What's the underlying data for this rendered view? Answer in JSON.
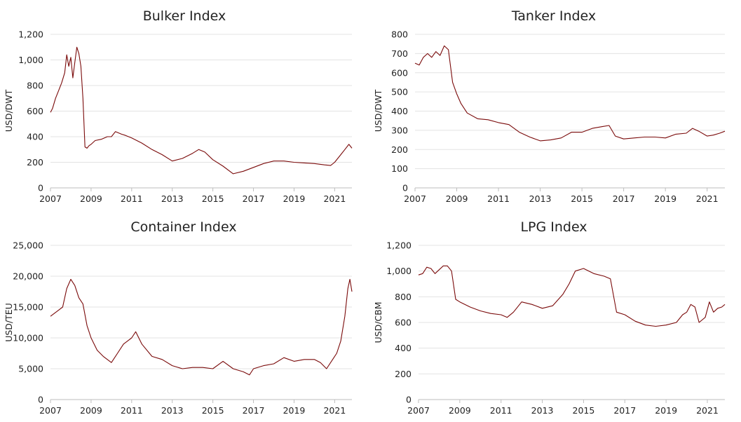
{
  "colors": {
    "series": "#7a0a0a",
    "grid": "#e3e3e3",
    "text": "#222222"
  },
  "chart_data": [
    {
      "type": "line",
      "title": "Bulker Index",
      "ylabel": "USD/DWT",
      "ylim": [
        0,
        1200
      ],
      "yticks": [
        0,
        200,
        400,
        600,
        800,
        1000,
        1200
      ],
      "ytick_labels": [
        "0",
        "200",
        "400",
        "600",
        "800",
        "1,000",
        "1,200"
      ],
      "xlim": [
        2007,
        2021.85
      ],
      "xticks": [
        2007,
        2009,
        2011,
        2013,
        2015,
        2017,
        2019,
        2021
      ],
      "xtick_labels": [
        "2007",
        "2009",
        "2011",
        "2013",
        "2015",
        "2017",
        "2019",
        "2021"
      ],
      "grid": true,
      "series": [
        {
          "x": [
            2007.0,
            2007.1,
            2007.25,
            2007.4,
            2007.55,
            2007.7,
            2007.8,
            2007.9,
            2008.0,
            2008.1,
            2008.2,
            2008.3,
            2008.4,
            2008.5,
            2008.6,
            2008.7,
            2008.8,
            2008.9,
            2009.0,
            2009.2,
            2009.5,
            2009.8,
            2010.0,
            2010.2,
            2010.5,
            2010.7,
            2011.0,
            2011.5,
            2012.0,
            2012.5,
            2013.0,
            2013.5,
            2014.0,
            2014.3,
            2014.6,
            2015.0,
            2015.5,
            2016.0,
            2016.5,
            2017.0,
            2017.5,
            2018.0,
            2018.5,
            2019.0,
            2019.5,
            2020.0,
            2020.5,
            2020.8,
            2021.0,
            2021.3,
            2021.5,
            2021.7,
            2021.85
          ],
          "y": [
            590,
            620,
            700,
            760,
            820,
            900,
            1040,
            950,
            1020,
            860,
            980,
            1100,
            1050,
            950,
            700,
            320,
            310,
            330,
            340,
            370,
            380,
            400,
            400,
            440,
            420,
            410,
            390,
            350,
            300,
            260,
            210,
            230,
            270,
            300,
            280,
            220,
            170,
            110,
            130,
            160,
            190,
            210,
            210,
            200,
            195,
            190,
            180,
            175,
            200,
            260,
            300,
            340,
            310
          ]
        }
      ]
    },
    {
      "type": "line",
      "title": "Tanker Index",
      "ylabel": "USD/DWT",
      "ylim": [
        0,
        800
      ],
      "yticks": [
        0,
        100,
        200,
        300,
        400,
        500,
        600,
        700,
        800
      ],
      "ytick_labels": [
        "0",
        "100",
        "200",
        "300",
        "400",
        "500",
        "600",
        "700",
        "800"
      ],
      "xlim": [
        2007,
        2021.85
      ],
      "xticks": [
        2007,
        2009,
        2011,
        2013,
        2015,
        2017,
        2019,
        2021
      ],
      "xtick_labels": [
        "2007",
        "2009",
        "2011",
        "2013",
        "2015",
        "2017",
        "2019",
        "2021"
      ],
      "grid": true,
      "series": [
        {
          "x": [
            2007.0,
            2007.2,
            2007.4,
            2007.6,
            2007.8,
            2008.0,
            2008.2,
            2008.4,
            2008.6,
            2008.8,
            2009.0,
            2009.2,
            2009.5,
            2010.0,
            2010.5,
            2011.0,
            2011.5,
            2012.0,
            2012.5,
            2013.0,
            2013.5,
            2014.0,
            2014.5,
            2015.0,
            2015.5,
            2016.0,
            2016.3,
            2016.6,
            2017.0,
            2017.5,
            2018.0,
            2018.5,
            2019.0,
            2019.5,
            2020.0,
            2020.3,
            2020.6,
            2021.0,
            2021.3,
            2021.6,
            2021.85
          ],
          "y": [
            650,
            640,
            680,
            700,
            680,
            710,
            690,
            740,
            720,
            550,
            490,
            440,
            390,
            360,
            355,
            340,
            330,
            290,
            265,
            245,
            250,
            260,
            290,
            290,
            310,
            320,
            325,
            270,
            255,
            260,
            265,
            265,
            260,
            280,
            285,
            310,
            295,
            270,
            275,
            285,
            295
          ]
        }
      ]
    },
    {
      "type": "line",
      "title": "Container Index",
      "ylabel": "USD/TEU",
      "ylim": [
        0,
        25000
      ],
      "yticks": [
        0,
        5000,
        10000,
        15000,
        20000,
        25000
      ],
      "ytick_labels": [
        "0",
        "5,000",
        "10,000",
        "15,000",
        "20,000",
        "25,000"
      ],
      "xlim": [
        2007,
        2021.85
      ],
      "xticks": [
        2007,
        2009,
        2011,
        2013,
        2015,
        2017,
        2019,
        2021
      ],
      "xtick_labels": [
        "2007",
        "2009",
        "2011",
        "2013",
        "2015",
        "2017",
        "2019",
        "2021"
      ],
      "grid": true,
      "series": [
        {
          "x": [
            2007.0,
            2007.2,
            2007.4,
            2007.6,
            2007.8,
            2008.0,
            2008.2,
            2008.4,
            2008.6,
            2008.8,
            2009.0,
            2009.3,
            2009.6,
            2010.0,
            2010.3,
            2010.6,
            2010.8,
            2011.0,
            2011.2,
            2011.5,
            2012.0,
            2012.5,
            2013.0,
            2013.5,
            2014.0,
            2014.5,
            2015.0,
            2015.5,
            2016.0,
            2016.5,
            2016.8,
            2017.0,
            2017.5,
            2018.0,
            2018.5,
            2019.0,
            2019.5,
            2020.0,
            2020.3,
            2020.6,
            2020.9,
            2021.1,
            2021.3,
            2021.5,
            2021.65,
            2021.75,
            2021.85
          ],
          "y": [
            13500,
            14000,
            14500,
            15000,
            18000,
            19500,
            18500,
            16500,
            15500,
            12000,
            10000,
            8000,
            7000,
            6000,
            7500,
            9000,
            9500,
            10000,
            11000,
            9000,
            7000,
            6500,
            5500,
            5000,
            5200,
            5200,
            5000,
            6200,
            5000,
            4500,
            4000,
            5000,
            5500,
            5800,
            6800,
            6200,
            6500,
            6500,
            6000,
            5000,
            6500,
            7500,
            9500,
            13500,
            18000,
            19500,
            17500
          ]
        }
      ]
    },
    {
      "type": "line",
      "title": "LPG Index",
      "ylabel": "USD/CBM",
      "ylim": [
        0,
        1200
      ],
      "yticks": [
        0,
        200,
        400,
        600,
        800,
        1000,
        1200
      ],
      "ytick_labels": [
        "0",
        "200",
        "400",
        "600",
        "800",
        "1,000",
        "1,200"
      ],
      "xlim": [
        2007,
        2021.85
      ],
      "xticks": [
        2007,
        2009,
        2011,
        2013,
        2015,
        2017,
        2019,
        2021
      ],
      "xtick_labels": [
        "2007",
        "2009",
        "2011",
        "2013",
        "2015",
        "2017",
        "2019",
        "2021"
      ],
      "grid": true,
      "series": [
        {
          "x": [
            2007.0,
            2007.2,
            2007.4,
            2007.6,
            2007.8,
            2008.0,
            2008.2,
            2008.4,
            2008.6,
            2008.8,
            2009.0,
            2009.5,
            2010.0,
            2010.5,
            2011.0,
            2011.3,
            2011.6,
            2012.0,
            2012.5,
            2013.0,
            2013.5,
            2014.0,
            2014.3,
            2014.6,
            2015.0,
            2015.5,
            2016.0,
            2016.3,
            2016.6,
            2017.0,
            2017.5,
            2018.0,
            2018.5,
            2019.0,
            2019.5,
            2019.8,
            2020.0,
            2020.2,
            2020.4,
            2020.6,
            2020.9,
            2021.1,
            2021.3,
            2021.5,
            2021.7,
            2021.85
          ],
          "y": [
            970,
            980,
            1030,
            1020,
            980,
            1010,
            1040,
            1040,
            1000,
            780,
            760,
            720,
            690,
            670,
            660,
            640,
            680,
            760,
            740,
            710,
            730,
            820,
            900,
            1000,
            1020,
            980,
            960,
            940,
            680,
            660,
            610,
            580,
            570,
            580,
            600,
            660,
            680,
            740,
            720,
            600,
            640,
            760,
            680,
            710,
            720,
            740
          ]
        }
      ]
    }
  ]
}
